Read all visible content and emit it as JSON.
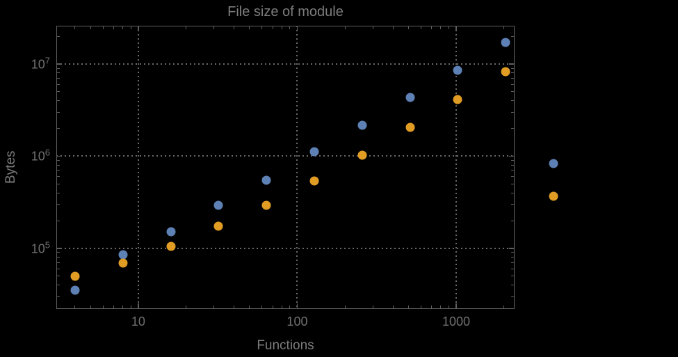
{
  "chart_data": {
    "type": "scatter",
    "title": "File size of module",
    "xlabel": "Functions",
    "ylabel": "Bytes",
    "xscale": "log",
    "yscale": "log",
    "xlim": [
      3.05,
      2330
    ],
    "ylim": [
      22000,
      26000000
    ],
    "grid": "dotted",
    "legend_position": "none",
    "x_ticks": [
      {
        "value": 10,
        "label": "10"
      },
      {
        "value": 100,
        "label": "100"
      },
      {
        "value": 1000,
        "label": "1000"
      }
    ],
    "y_ticks": [
      {
        "value": 100000,
        "label": "10^5",
        "base": "10",
        "exp": "5"
      },
      {
        "value": 1000000,
        "label": "10^6",
        "base": "10",
        "exp": "6"
      },
      {
        "value": 10000000,
        "label": "10^7",
        "base": "10",
        "exp": "7"
      }
    ],
    "series": [
      {
        "name": "series-1-blue",
        "color": "#5e81b5",
        "marker": "circle",
        "points": [
          [
            4,
            35000
          ],
          [
            8,
            86000
          ],
          [
            16,
            152000
          ],
          [
            32,
            294000
          ],
          [
            64,
            550000
          ],
          [
            128,
            1120000
          ],
          [
            256,
            2170000
          ],
          [
            512,
            4340000
          ],
          [
            1024,
            8550000
          ],
          [
            2048,
            17100000
          ],
          [
            4096,
            830000
          ]
        ]
      },
      {
        "name": "series-2-orange",
        "color": "#e19c24",
        "marker": "circle",
        "points": [
          [
            4,
            50000
          ],
          [
            8,
            69000
          ],
          [
            16,
            105000
          ],
          [
            32,
            174000
          ],
          [
            64,
            294000
          ],
          [
            128,
            540000
          ],
          [
            256,
            1030000
          ],
          [
            512,
            2060000
          ],
          [
            1024,
            4120000
          ],
          [
            2048,
            8260000
          ],
          [
            4096,
            370000
          ]
        ]
      }
    ],
    "colors": {
      "background": "#000000",
      "frame": "#5f5f5f",
      "grid": "#6a6a6a",
      "title_text": "#7c7c7c",
      "tick_text": "#6f6f6f"
    }
  }
}
